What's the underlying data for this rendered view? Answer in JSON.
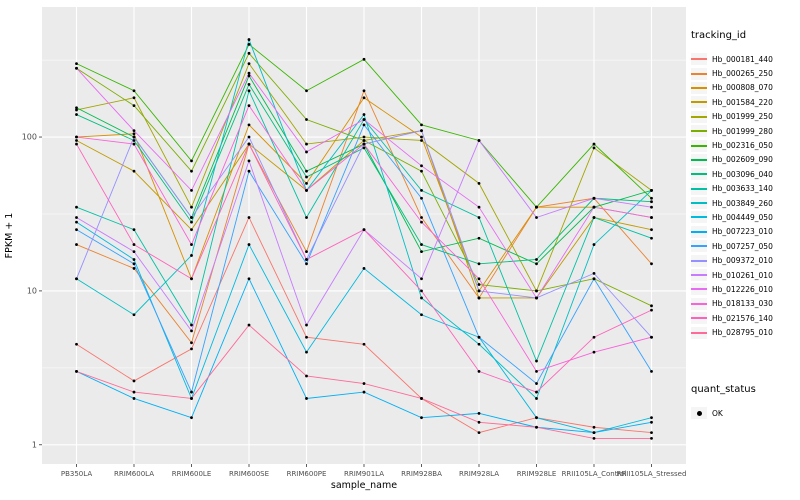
{
  "legend": {
    "tracking_title": "tracking_id",
    "quant_title": "quant_status",
    "quant_items": [
      {
        "label": "OK"
      }
    ]
  },
  "chart_data": {
    "type": "line",
    "title": "",
    "xlabel": "sample_name",
    "ylabel": "FPKM + 1",
    "y_scale": "log10",
    "y_ticks": [
      1,
      10,
      100
    ],
    "ylim": [
      0.75,
      700
    ],
    "grid": "on",
    "legend_position": "right",
    "panel_bg": "#EBEBEB",
    "grid_color": "#FFFFFF",
    "point_color": "#000000",
    "axis_text_color": "#4D4D4D",
    "categories": [
      "PB350LA",
      "RRIM600LA",
      "RRIM600LE",
      "RRIM600SE",
      "RRIM600PE",
      "RRIM901LA",
      "RRIM928BA",
      "RRIM928LA",
      "RRIM928LE",
      "RRII105LA_Control",
      "RRII105LA_Stressed"
    ],
    "series": [
      {
        "name": "Hb_000181_440",
        "color": "#F8766D",
        "values": [
          4.5,
          2.6,
          4.2,
          30,
          5,
          4.5,
          2.0,
          1.2,
          1.5,
          1.3,
          1.2
        ]
      },
      {
        "name": "Hb_000265_250",
        "color": "#EA8331",
        "values": [
          20,
          14,
          4.6,
          90,
          18,
          200,
          30,
          9,
          35,
          40,
          15
        ]
      },
      {
        "name": "Hb_000808_070",
        "color": "#D89000",
        "values": [
          100,
          105,
          12,
          120,
          50,
          180,
          100,
          10,
          35,
          35,
          30
        ]
      },
      {
        "name": "Hb_001584_220",
        "color": "#C09B00",
        "values": [
          95,
          60,
          25,
          90,
          45,
          95,
          110,
          9,
          9,
          30,
          25
        ]
      },
      {
        "name": "Hb_001999_250",
        "color": "#A3A500",
        "values": [
          150,
          180,
          35,
          300,
          90,
          100,
          95,
          50,
          10,
          85,
          45
        ]
      },
      {
        "name": "Hb_001999_280",
        "color": "#7CAE00",
        "values": [
          280,
          160,
          60,
          350,
          130,
          95,
          60,
          11,
          10,
          12,
          8
        ]
      },
      {
        "name": "Hb_002316_050",
        "color": "#39B600",
        "values": [
          300,
          200,
          70,
          400,
          200,
          320,
          120,
          95,
          35,
          90,
          40
        ]
      },
      {
        "name": "Hb_002609_090",
        "color": "#00BB4E",
        "values": [
          155,
          100,
          30,
          250,
          60,
          90,
          18,
          22,
          15,
          35,
          45
        ]
      },
      {
        "name": "Hb_003096_040",
        "color": "#00BF7D",
        "values": [
          140,
          95,
          28,
          220,
          55,
          85,
          20,
          15,
          16,
          40,
          38
        ]
      },
      {
        "name": "Hb_003633_140",
        "color": "#00C1A3",
        "values": [
          35,
          25,
          6,
          200,
          30,
          130,
          45,
          30,
          3.5,
          30,
          22
        ]
      },
      {
        "name": "Hb_003849_260",
        "color": "#00BFC4",
        "values": [
          12,
          7,
          17,
          430,
          45,
          140,
          9,
          4.5,
          2,
          20,
          45
        ]
      },
      {
        "name": "Hb_004449_050",
        "color": "#00BAE0",
        "values": [
          28,
          16,
          2,
          20,
          4,
          14,
          7,
          5,
          1.5,
          1.2,
          1.5
        ]
      },
      {
        "name": "Hb_007223_010",
        "color": "#00B0F6",
        "values": [
          3,
          2,
          1.5,
          12,
          2,
          2.2,
          1.5,
          1.6,
          1.3,
          1.2,
          1.4
        ]
      },
      {
        "name": "Hb_007257_050",
        "color": "#35A2FF",
        "values": [
          25,
          15,
          2.2,
          60,
          15,
          120,
          40,
          5,
          2.5,
          12,
          3
        ]
      },
      {
        "name": "Hb_009372_010",
        "color": "#9590FF",
        "values": [
          12,
          100,
          30,
          100,
          16,
          90,
          110,
          10,
          9,
          13,
          5
        ]
      },
      {
        "name": "Hb_010261_010",
        "color": "#C77CFF",
        "values": [
          30,
          18,
          5.5,
          70,
          6,
          25,
          12,
          95,
          30,
          40,
          35
        ]
      },
      {
        "name": "Hb_012226_010",
        "color": "#E76BF3",
        "values": [
          280,
          110,
          45,
          260,
          80,
          130,
          65,
          35,
          9,
          35,
          30
        ]
      },
      {
        "name": "Hb_018133_030",
        "color": "#FA62DB",
        "values": [
          100,
          90,
          20,
          160,
          45,
          90,
          28,
          12,
          3,
          4,
          5
        ]
      },
      {
        "name": "Hb_021576_140",
        "color": "#FF62BC",
        "values": [
          90,
          20,
          12,
          90,
          16,
          25,
          10,
          3,
          2.2,
          5,
          7.5
        ]
      },
      {
        "name": "Hb_028795_010",
        "color": "#FF6A98",
        "values": [
          3,
          2.2,
          2,
          6,
          2.8,
          2.5,
          2,
          1.4,
          1.3,
          1.1,
          1.1
        ]
      }
    ],
    "quant_status": {
      "label": "OK"
    }
  }
}
